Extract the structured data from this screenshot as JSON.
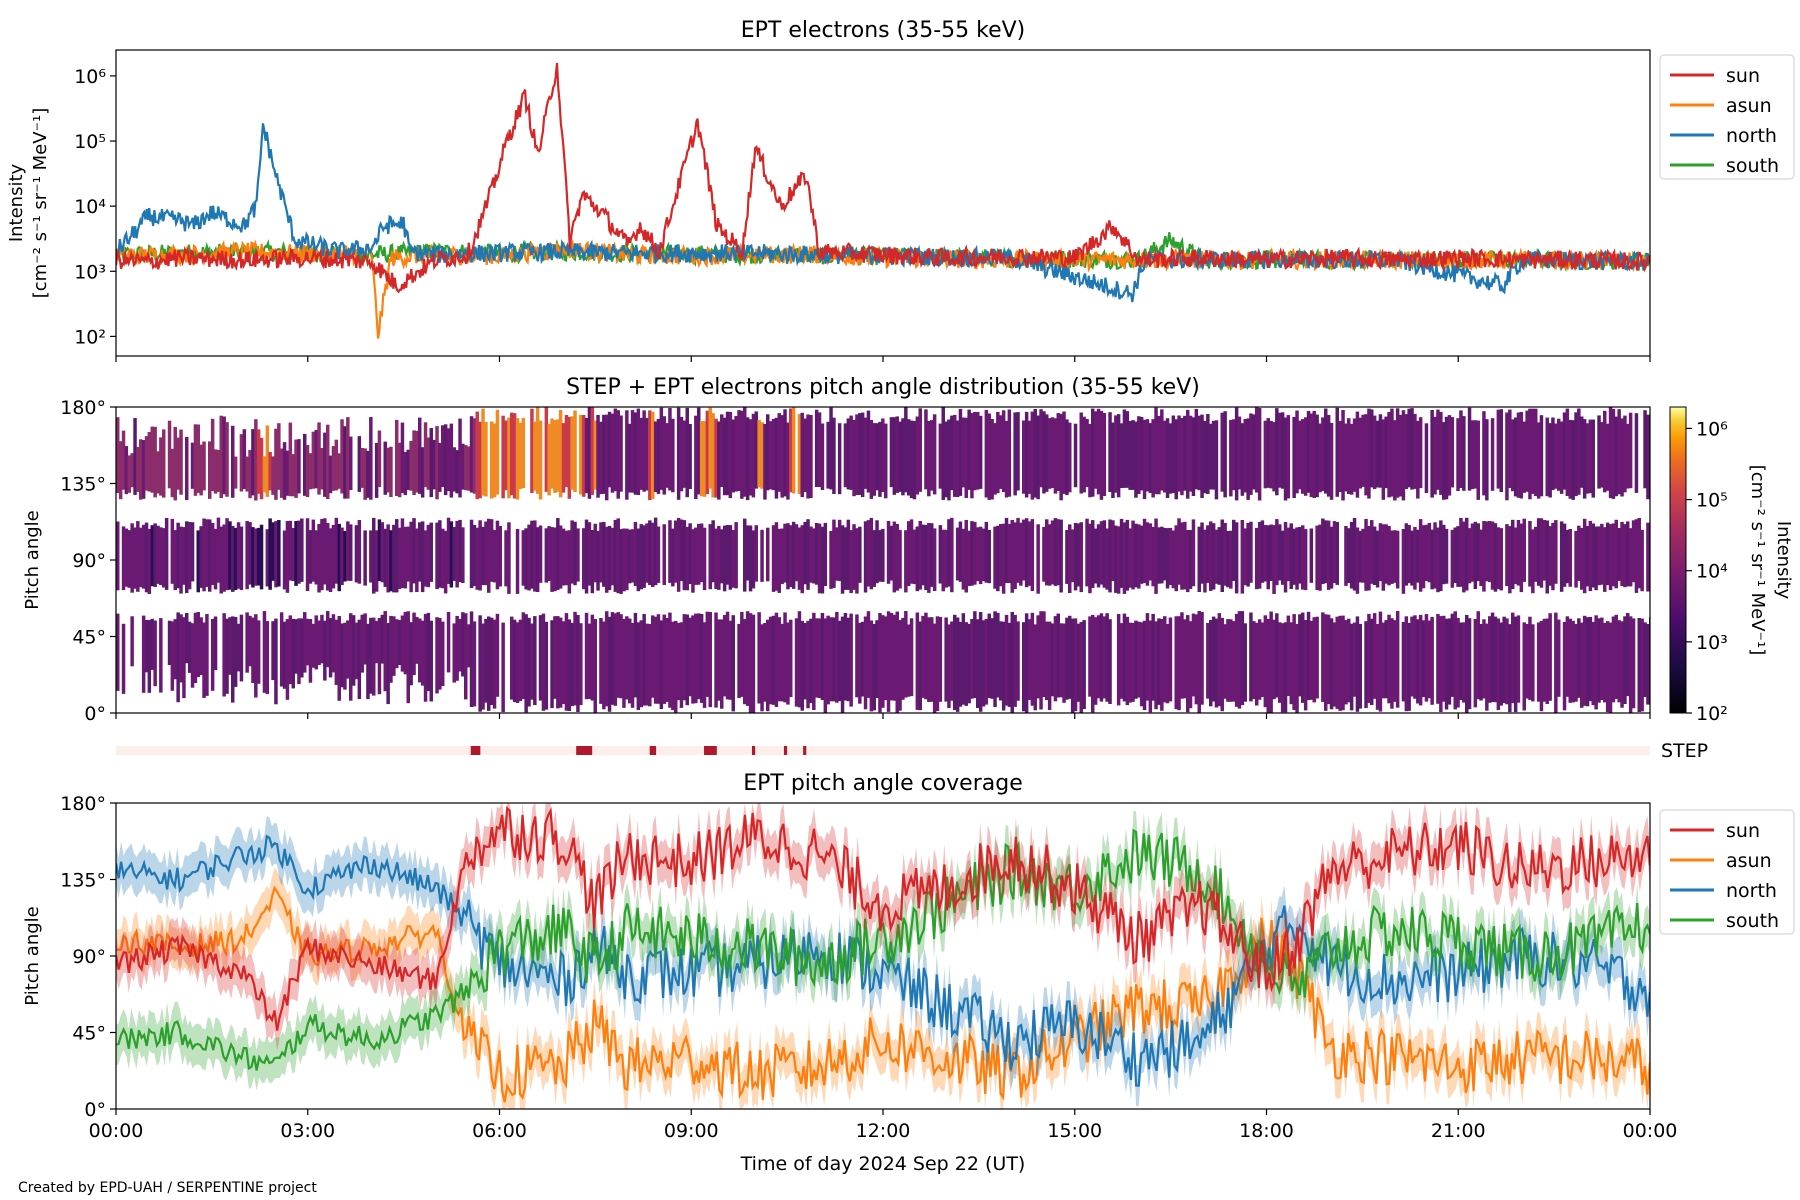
{
  "colors": {
    "sun": "#d62728",
    "asun": "#ff7f0e",
    "north": "#1f77b4",
    "south": "#2ca02c",
    "pad_fill": "#6a1a72",
    "step_bg": "#fdeee9",
    "step_bar": "#b2182b"
  },
  "footer": "Created by EPD-UAH / SERPENTINE project",
  "chart_data": [
    {
      "type": "line",
      "title": "EPT electrons (35-55 keV)",
      "ylabel_line1": "Intensity",
      "ylabel_line2": "[cm⁻² s⁻¹ sr⁻¹ MeV⁻¹]",
      "yscale": "log",
      "ylim": [
        50,
        2500000
      ],
      "yticks": [
        {
          "value": 100,
          "label": "10²"
        },
        {
          "value": 1000,
          "label": "10³"
        },
        {
          "value": 10000,
          "label": "10⁴"
        },
        {
          "value": 100000,
          "label": "10⁵"
        },
        {
          "value": 1000000,
          "label": "10⁶"
        }
      ],
      "xlim_hours": [
        0,
        24
      ],
      "legend": {
        "placement": "outside-right-top",
        "entries": [
          "sun",
          "asun",
          "north",
          "south"
        ]
      },
      "series": [
        {
          "name": "sun",
          "points": [
            [
              0,
              1500
            ],
            [
              0.5,
              1400
            ],
            [
              1,
              1600
            ],
            [
              2,
              1500
            ],
            [
              3,
              1600
            ],
            [
              4,
              1400
            ],
            [
              4.4,
              600
            ],
            [
              5,
              1500
            ],
            [
              5.5,
              1800
            ],
            [
              5.6,
              3000
            ],
            [
              5.9,
              20000
            ],
            [
              6.1,
              90000
            ],
            [
              6.4,
              500000
            ],
            [
              6.6,
              60000
            ],
            [
              6.9,
              1500000
            ],
            [
              7.1,
              3000
            ],
            [
              7.3,
              15000
            ],
            [
              7.6,
              8000
            ],
            [
              8,
              2500
            ],
            [
              8.2,
              5000
            ],
            [
              8.5,
              2000
            ],
            [
              9.1,
              200000
            ],
            [
              9.4,
              5000
            ],
            [
              9.8,
              2000
            ],
            [
              10,
              80000
            ],
            [
              10.4,
              10000
            ],
            [
              10.8,
              30000
            ],
            [
              11,
              2000
            ],
            [
              12,
              1800
            ],
            [
              13,
              1600
            ],
            [
              14,
              1700
            ],
            [
              15,
              1600
            ],
            [
              15.6,
              5000
            ],
            [
              16,
              1500
            ],
            [
              17,
              1600
            ],
            [
              18,
              1500
            ],
            [
              19,
              1600
            ],
            [
              20,
              1500
            ],
            [
              21,
              1600
            ],
            [
              22,
              1500
            ],
            [
              23,
              1500
            ],
            [
              24,
              1400
            ]
          ]
        },
        {
          "name": "asun",
          "points": [
            [
              0,
              1700
            ],
            [
              1,
              1800
            ],
            [
              2,
              2000
            ],
            [
              3,
              1900
            ],
            [
              4,
              1800
            ],
            [
              4.1,
              110
            ],
            [
              4.3,
              1600
            ],
            [
              5,
              1800
            ],
            [
              6,
              1700
            ],
            [
              7,
              2200
            ],
            [
              8,
              1800
            ],
            [
              9,
              1700
            ],
            [
              10,
              1800
            ],
            [
              11,
              1800
            ],
            [
              12,
              1600
            ],
            [
              14,
              1500
            ],
            [
              16,
              1500
            ],
            [
              18,
              1500
            ],
            [
              20,
              1500
            ],
            [
              22,
              1500
            ],
            [
              24,
              1400
            ]
          ]
        },
        {
          "name": "north",
          "points": [
            [
              0,
              2000
            ],
            [
              0.3,
              4000
            ],
            [
              0.5,
              7000
            ],
            [
              1,
              6000
            ],
            [
              1.2,
              5000
            ],
            [
              1.5,
              8000
            ],
            [
              2,
              5000
            ],
            [
              2.2,
              10000
            ],
            [
              2.3,
              180000
            ],
            [
              2.5,
              30000
            ],
            [
              2.8,
              3000
            ],
            [
              3.5,
              2000
            ],
            [
              4,
              2300
            ],
            [
              4.2,
              5000
            ],
            [
              4.5,
              5500
            ],
            [
              4.6,
              2000
            ],
            [
              5,
              1800
            ],
            [
              6,
              1900
            ],
            [
              7,
              2000
            ],
            [
              8,
              1900
            ],
            [
              10,
              1900
            ],
            [
              12,
              1700
            ],
            [
              14,
              1600
            ],
            [
              15.9,
              450
            ],
            [
              16.1,
              1500
            ],
            [
              18,
              1500
            ],
            [
              20,
              1500
            ],
            [
              21.7,
              600
            ],
            [
              22,
              1500
            ],
            [
              24,
              1400
            ]
          ]
        },
        {
          "name": "south",
          "points": [
            [
              0,
              1800
            ],
            [
              1,
              1900
            ],
            [
              2,
              2000
            ],
            [
              3,
              1900
            ],
            [
              4,
              1800
            ],
            [
              5,
              2000
            ],
            [
              6,
              1900
            ],
            [
              7,
              2000
            ],
            [
              8,
              1900
            ],
            [
              10,
              1800
            ],
            [
              12,
              1700
            ],
            [
              14,
              1600
            ],
            [
              16,
              1500
            ],
            [
              16.5,
              3000
            ],
            [
              17,
              1500
            ],
            [
              18,
              1500
            ],
            [
              20,
              1500
            ],
            [
              22,
              1500
            ],
            [
              24,
              1400
            ]
          ]
        }
      ]
    },
    {
      "type": "heatmap",
      "title": "STEP + EPT electrons pitch angle distribution (35-55 keV)",
      "ylabel": "Pitch angle",
      "ylim": [
        0,
        180
      ],
      "yticks": [
        {
          "value": 0,
          "label": "0°"
        },
        {
          "value": 45,
          "label": "45°"
        },
        {
          "value": 90,
          "label": "90°"
        },
        {
          "value": 135,
          "label": "135°"
        },
        {
          "value": 180,
          "label": "180°"
        }
      ],
      "colorbar": {
        "label_line1": "Intensity",
        "label_line2": "[cm⁻² s⁻¹ sr⁻¹ MeV⁻¹]",
        "scale": "log",
        "range": [
          100,
          2000000
        ],
        "ticks": [
          "10²",
          "10³",
          "10⁴",
          "10⁵",
          "10⁶"
        ],
        "colormap": "inferno"
      },
      "high_intensity_intervals_hours": [
        [
          2.2,
          2.4
        ],
        [
          5.6,
          7.3
        ],
        [
          7.4,
          7.5
        ],
        [
          8.3,
          8.4
        ],
        [
          9.1,
          9.4
        ],
        [
          10.0,
          10.1
        ],
        [
          10.5,
          10.7
        ]
      ],
      "step_label": "STEP",
      "step_marks_hours": [
        [
          5.55,
          5.7
        ],
        [
          7.2,
          7.45
        ],
        [
          8.35,
          8.45
        ],
        [
          9.2,
          9.4
        ],
        [
          9.95,
          10.0
        ],
        [
          10.45,
          10.5
        ],
        [
          10.75,
          10.8
        ]
      ]
    },
    {
      "type": "line",
      "title": "EPT pitch angle coverage",
      "ylabel": "Pitch angle",
      "xlabel": "Time of day 2024 Sep 22 (UT)",
      "ylim": [
        0,
        180
      ],
      "yticks": [
        {
          "value": 0,
          "label": "0°"
        },
        {
          "value": 45,
          "label": "45°"
        },
        {
          "value": 90,
          "label": "90°"
        },
        {
          "value": 135,
          "label": "135°"
        },
        {
          "value": 180,
          "label": "180°"
        }
      ],
      "xticks": [
        {
          "value": 0,
          "label": "00:00"
        },
        {
          "value": 3,
          "label": "03:00"
        },
        {
          "value": 6,
          "label": "06:00"
        },
        {
          "value": 9,
          "label": "09:00"
        },
        {
          "value": 12,
          "label": "12:00"
        },
        {
          "value": 15,
          "label": "15:00"
        },
        {
          "value": 18,
          "label": "18:00"
        },
        {
          "value": 21,
          "label": "21:00"
        },
        {
          "value": 24,
          "label": "00:00"
        }
      ],
      "legend": {
        "placement": "outside-right-top",
        "entries": [
          "sun",
          "asun",
          "north",
          "south"
        ]
      },
      "band_halfwidth_deg": 12,
      "series": [
        {
          "name": "sun",
          "points": [
            [
              0,
              85
            ],
            [
              1,
              95
            ],
            [
              2,
              80
            ],
            [
              2.5,
              50
            ],
            [
              3,
              95
            ],
            [
              4,
              85
            ],
            [
              5,
              75
            ],
            [
              5.5,
              150
            ],
            [
              6,
              165
            ],
            [
              7,
              160
            ],
            [
              7.5,
              120
            ],
            [
              8,
              150
            ],
            [
              9,
              145
            ],
            [
              10,
              160
            ],
            [
              11,
              150
            ],
            [
              12,
              120
            ],
            [
              13,
              130
            ],
            [
              14,
              150
            ],
            [
              15,
              130
            ],
            [
              16,
              100
            ],
            [
              17,
              120
            ],
            [
              18,
              80
            ],
            [
              18.5,
              100
            ],
            [
              19,
              140
            ],
            [
              20,
              150
            ],
            [
              21,
              155
            ],
            [
              22,
              140
            ],
            [
              23,
              145
            ],
            [
              24,
              150
            ]
          ]
        },
        {
          "name": "asun",
          "points": [
            [
              0,
              100
            ],
            [
              1,
              95
            ],
            [
              2,
              100
            ],
            [
              2.5,
              125
            ],
            [
              3,
              90
            ],
            [
              4,
              95
            ],
            [
              5,
              105
            ],
            [
              5.5,
              40
            ],
            [
              6,
              20
            ],
            [
              7,
              25
            ],
            [
              7.5,
              50
            ],
            [
              8,
              25
            ],
            [
              9,
              30
            ],
            [
              10,
              20
            ],
            [
              11,
              25
            ],
            [
              12,
              40
            ],
            [
              13,
              30
            ],
            [
              14,
              20
            ],
            [
              15,
              40
            ],
            [
              16,
              60
            ],
            [
              17,
              60
            ],
            [
              18,
              100
            ],
            [
              18.5,
              80
            ],
            [
              19,
              35
            ],
            [
              20,
              30
            ],
            [
              21,
              25
            ],
            [
              22,
              30
            ],
            [
              23,
              30
            ],
            [
              24,
              25
            ]
          ]
        },
        {
          "name": "north",
          "points": [
            [
              0,
              140
            ],
            [
              1,
              135
            ],
            [
              2,
              150
            ],
            [
              2.5,
              155
            ],
            [
              3,
              130
            ],
            [
              4,
              145
            ],
            [
              5,
              130
            ],
            [
              5.5,
              110
            ],
            [
              6,
              85
            ],
            [
              7,
              75
            ],
            [
              7.5,
              95
            ],
            [
              8,
              80
            ],
            [
              9,
              80
            ],
            [
              10,
              85
            ],
            [
              11,
              95
            ],
            [
              12,
              80
            ],
            [
              13,
              60
            ],
            [
              14,
              40
            ],
            [
              15,
              50
            ],
            [
              16,
              30
            ],
            [
              17,
              40
            ],
            [
              18,
              95
            ],
            [
              18.5,
              110
            ],
            [
              19,
              85
            ],
            [
              20,
              75
            ],
            [
              21,
              80
            ],
            [
              22,
              90
            ],
            [
              23,
              85
            ],
            [
              24,
              70
            ]
          ]
        },
        {
          "name": "south",
          "points": [
            [
              0,
              40
            ],
            [
              1,
              45
            ],
            [
              2,
              30
            ],
            [
              2.5,
              25
            ],
            [
              3,
              50
            ],
            [
              4,
              40
            ],
            [
              5,
              55
            ],
            [
              5.5,
              70
            ],
            [
              6,
              95
            ],
            [
              7,
              105
            ],
            [
              7.5,
              85
            ],
            [
              8,
              105
            ],
            [
              9,
              100
            ],
            [
              10,
              95
            ],
            [
              11,
              85
            ],
            [
              12,
              100
            ],
            [
              13,
              120
            ],
            [
              14,
              140
            ],
            [
              15,
              130
            ],
            [
              16,
              150
            ],
            [
              17,
              140
            ],
            [
              18,
              85
            ],
            [
              18.5,
              70
            ],
            [
              19,
              95
            ],
            [
              20,
              105
            ],
            [
              21,
              100
            ],
            [
              22,
              90
            ],
            [
              23,
              95
            ],
            [
              24,
              110
            ]
          ]
        }
      ]
    }
  ]
}
